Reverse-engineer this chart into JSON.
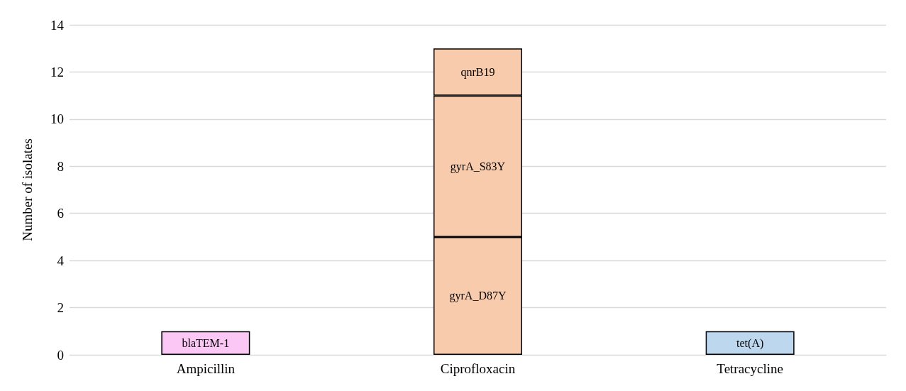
{
  "chart_data": {
    "type": "bar",
    "stacked": true,
    "ylabel": "Number of isolates",
    "categories": [
      "Ampicillin",
      "Ciprofloxacin",
      "Tetracycline"
    ],
    "series": [
      {
        "name": "blaTEM-1",
        "color": "#fbc8f5",
        "values": [
          1,
          null,
          null
        ]
      },
      {
        "name": "gyrA_D87Y",
        "color": "#f8cbad",
        "values": [
          null,
          5,
          null
        ]
      },
      {
        "name": "gyrA_S83Y",
        "color": "#f8cbad",
        "values": [
          null,
          6,
          null
        ]
      },
      {
        "name": "qnrB19",
        "color": "#f8cbad",
        "values": [
          null,
          2,
          null
        ]
      },
      {
        "name": "tet(A)",
        "color": "#bdd7ee",
        "values": [
          null,
          null,
          1
        ]
      }
    ],
    "ylim": [
      0,
      14
    ],
    "yticks": [
      0,
      2,
      4,
      6,
      8,
      10,
      12,
      14
    ],
    "grid": "y",
    "legend": false
  }
}
